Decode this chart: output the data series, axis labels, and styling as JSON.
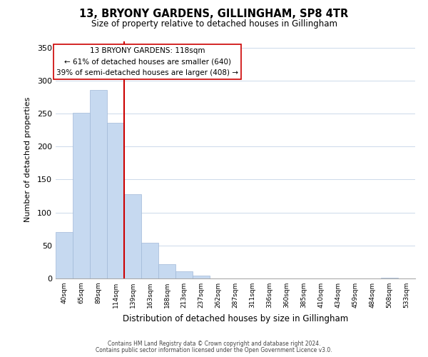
{
  "title": "13, BRYONY GARDENS, GILLINGHAM, SP8 4TR",
  "subtitle": "Size of property relative to detached houses in Gillingham",
  "xlabel": "Distribution of detached houses by size in Gillingham",
  "ylabel": "Number of detached properties",
  "bar_labels": [
    "40sqm",
    "65sqm",
    "89sqm",
    "114sqm",
    "139sqm",
    "163sqm",
    "188sqm",
    "213sqm",
    "237sqm",
    "262sqm",
    "287sqm",
    "311sqm",
    "336sqm",
    "360sqm",
    "385sqm",
    "410sqm",
    "434sqm",
    "459sqm",
    "484sqm",
    "508sqm",
    "533sqm"
  ],
  "bar_heights": [
    70,
    251,
    286,
    236,
    128,
    54,
    22,
    11,
    4,
    0,
    0,
    0,
    0,
    0,
    0,
    0,
    0,
    0,
    0,
    1,
    0
  ],
  "bar_color": "#c6d9f0",
  "bar_edge_color": "#a0b8d8",
  "vline_color": "#cc0000",
  "annotation_title": "13 BRYONY GARDENS: 118sqm",
  "annotation_line1": "← 61% of detached houses are smaller (640)",
  "annotation_line2": "39% of semi-detached houses are larger (408) →",
  "annotation_box_color": "#ffffff",
  "annotation_box_edge": "#cc0000",
  "ylim": [
    0,
    360
  ],
  "yticks": [
    0,
    50,
    100,
    150,
    200,
    250,
    300,
    350
  ],
  "footer1": "Contains HM Land Registry data © Crown copyright and database right 2024.",
  "footer2": "Contains public sector information licensed under the Open Government Licence v3.0.",
  "bg_color": "#ffffff"
}
